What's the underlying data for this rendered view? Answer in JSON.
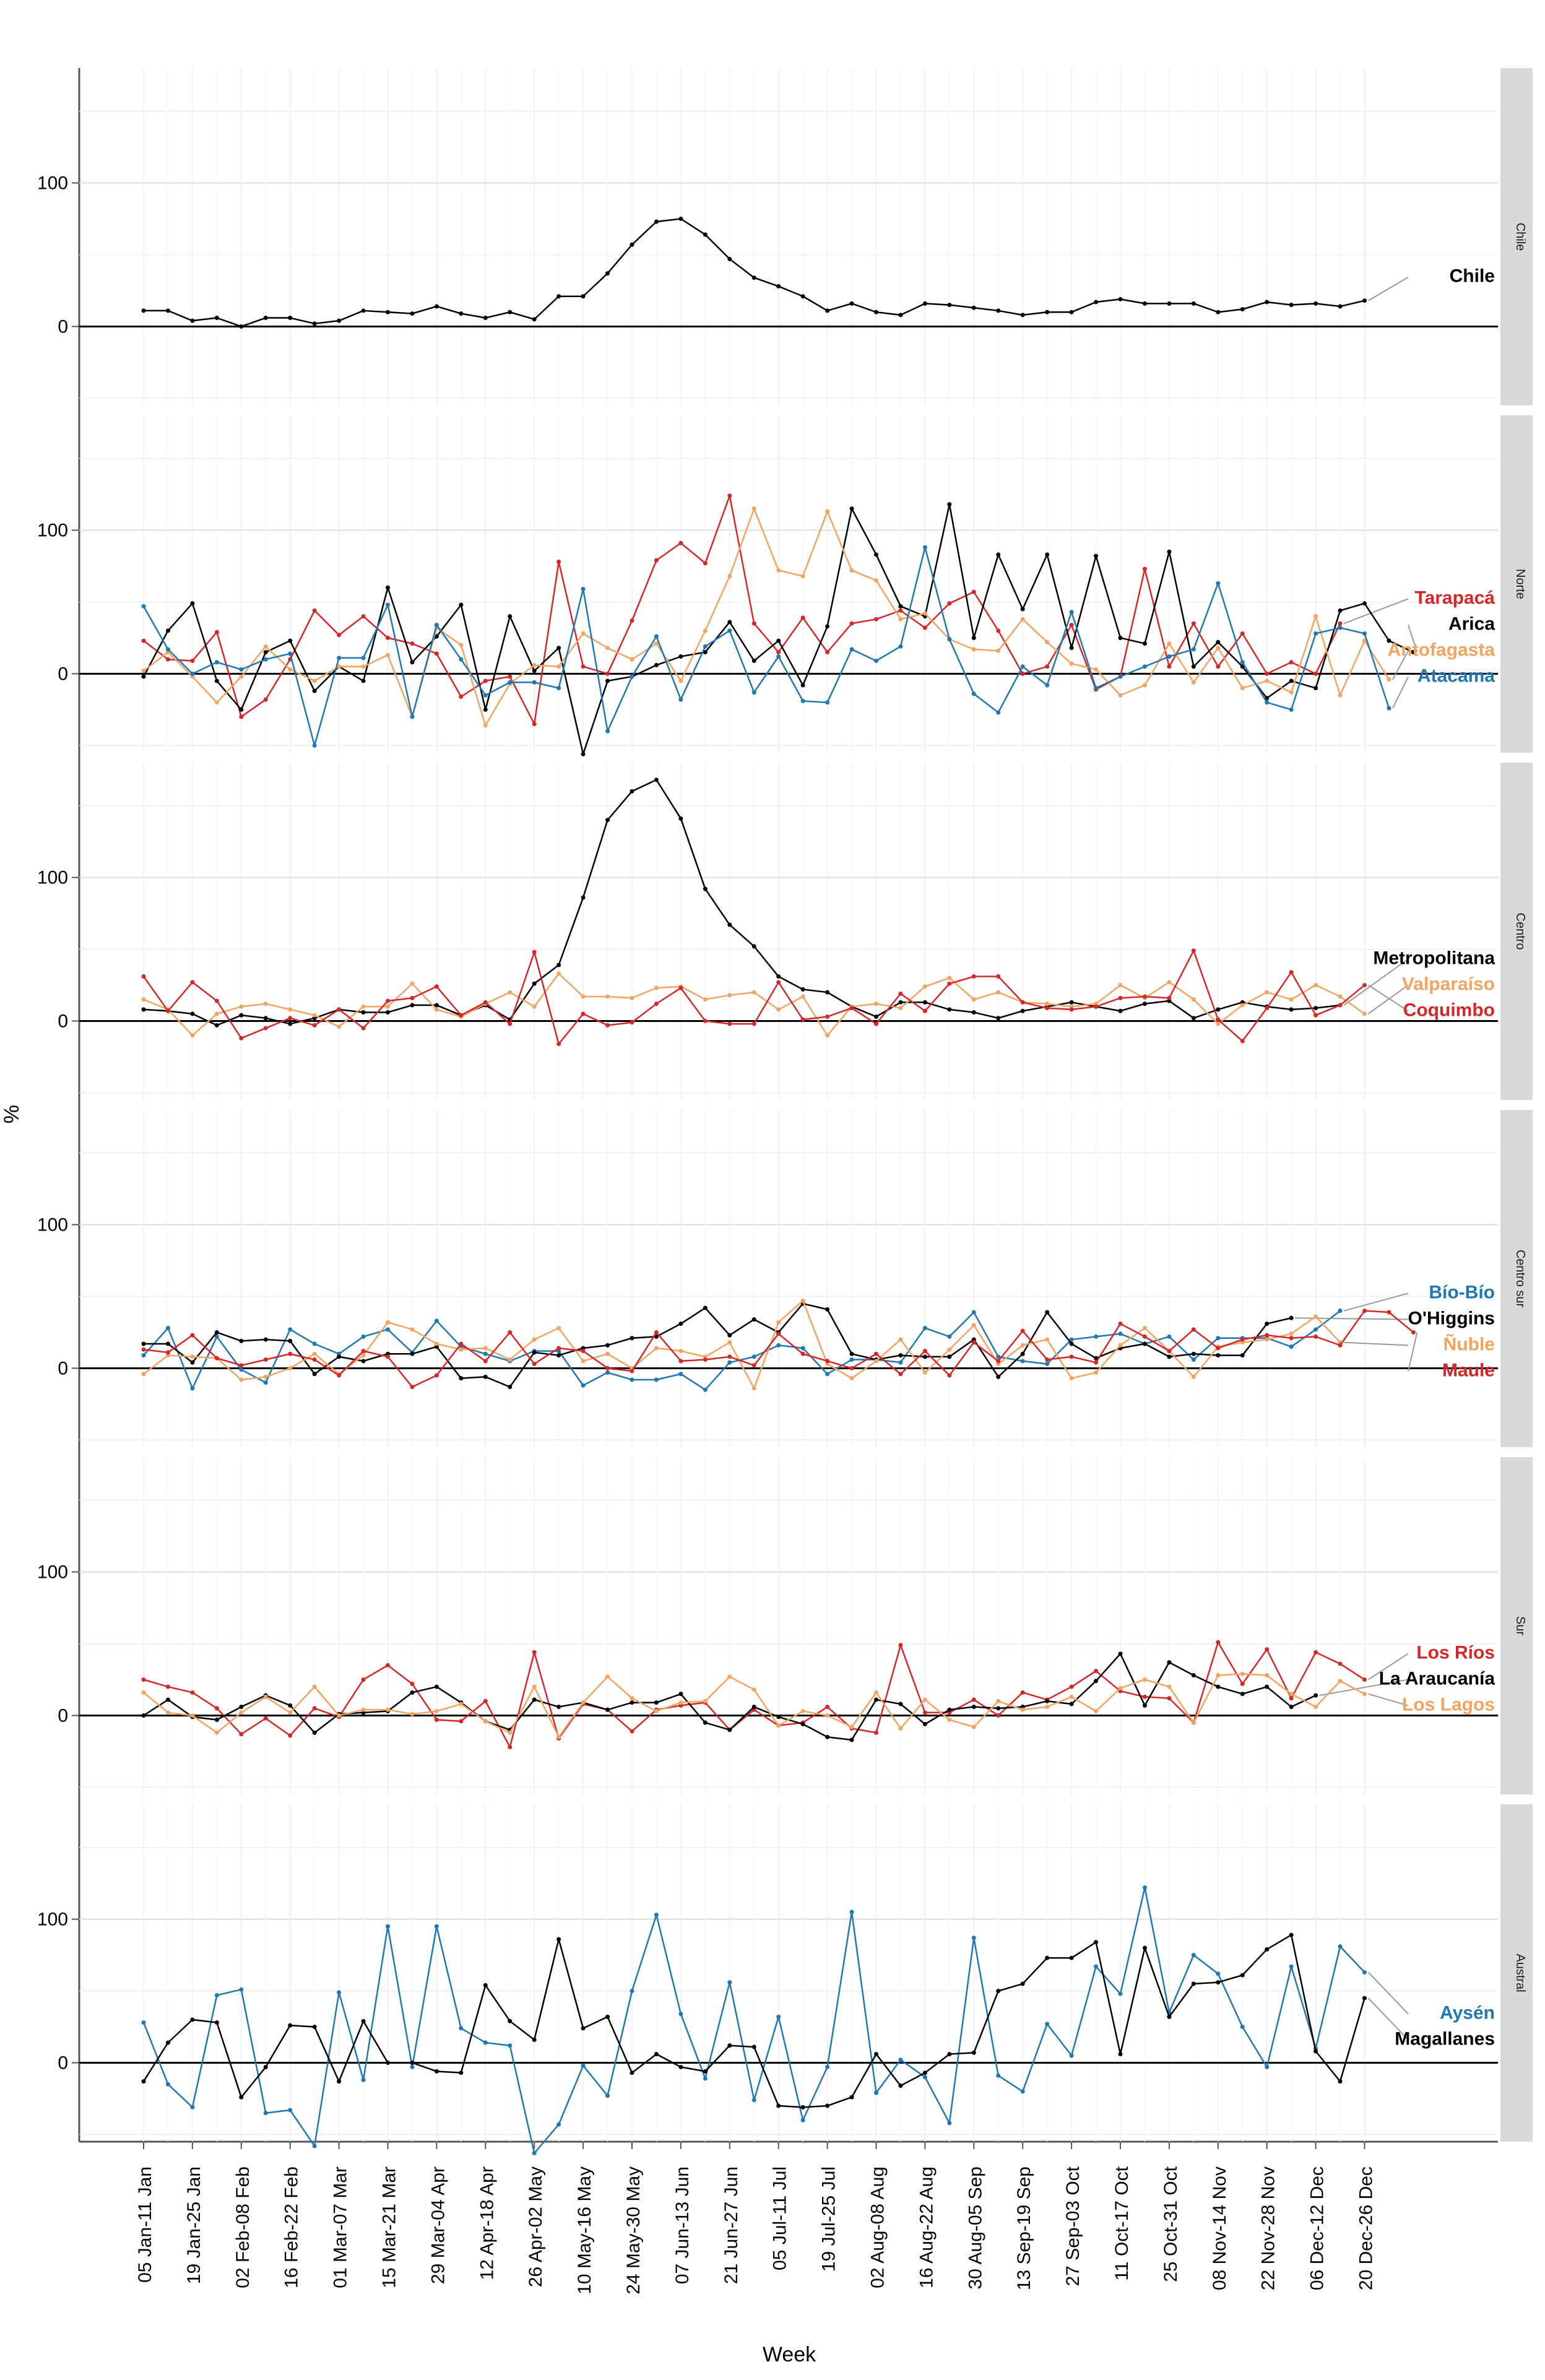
{
  "chart_data": {
    "type": "line",
    "ylabel": "%",
    "xlabel": "Week",
    "ylim": [
      -55,
      180
    ],
    "yticks": [
      0,
      100
    ],
    "tick_labels": [
      "05 Jan-11 Jan",
      "19 Jan-25 Jan",
      "02 Feb-08 Feb",
      "16 Feb-22 Feb",
      "01 Mar-07 Mar",
      "15 Mar-21 Mar",
      "29 Mar-04 Apr",
      "12 Apr-18 Apr",
      "26 Apr-02 May",
      "10 May-16 May",
      "24 May-30 May",
      "07 Jun-13 Jun",
      "21 Jun-27 Jun",
      "05 Jul-11 Jul",
      "19 Jul-25 Jul",
      "02 Aug-08 Aug",
      "16 Aug-22 Aug",
      "30 Aug-05 Sep",
      "13 Sep-19 Sep",
      "27 Sep-03 Oct",
      "11 Oct-17 Oct",
      "25 Oct-31 Oct",
      "08 Nov-14 Nov",
      "22 Nov-28 Nov",
      "06 Dec-12 Dec",
      "20 Dec-26 Dec"
    ],
    "panels": [
      {
        "name": "Chile",
        "series": [
          {
            "name": "Chile",
            "color": "#000000",
            "values": [
              11,
              11,
              4,
              6,
              0,
              6,
              6,
              2,
              4,
              11,
              10,
              9,
              14,
              9,
              6,
              10,
              5,
              21,
              21,
              37,
              57,
              73,
              75,
              64,
              47,
              34,
              28,
              21,
              11,
              16,
              10,
              8,
              16,
              15,
              13,
              11,
              8,
              10,
              10,
              17,
              19,
              16,
              16,
              16,
              10,
              12,
              17,
              15,
              16,
              14,
              18
            ]
          }
        ]
      },
      {
        "name": "Norte",
        "series": [
          {
            "name": "Tarapacá",
            "color": "#d62728",
            "values": [
              23,
              10,
              9,
              29,
              -30,
              -18,
              10,
              44,
              27,
              40,
              25,
              21,
              14,
              -16,
              -5,
              -2,
              -35,
              78,
              5,
              0,
              37,
              79,
              91,
              77,
              124,
              35,
              15,
              39,
              15,
              35,
              38,
              44,
              32,
              49,
              57,
              30,
              0,
              5,
              34,
              -11,
              -2,
              73,
              5,
              35,
              5,
              28,
              0,
              8,
              0,
              35
            ]
          },
          {
            "name": "Arica",
            "color": "#000000",
            "values": [
              -2,
              30,
              49,
              -5,
              -25,
              15,
              23,
              -12,
              5,
              -5,
              60,
              8,
              26,
              48,
              -25,
              40,
              2,
              18,
              -56,
              -5,
              -2,
              6,
              12,
              15,
              36,
              9,
              23,
              -8,
              33,
              115,
              83,
              47,
              40,
              118,
              25,
              83,
              45,
              83,
              18,
              82,
              25,
              21,
              85,
              5,
              22,
              5,
              -17,
              -5,
              -10,
              44,
              49,
              23,
              15
            ]
          },
          {
            "name": "Antofagasta",
            "color": "#f4a460",
            "values": [
              2,
              15,
              -2,
              -20,
              -2,
              19,
              3,
              -5,
              5,
              5,
              13,
              -30,
              32,
              20,
              -36,
              -7,
              6,
              5,
              28,
              18,
              10,
              21,
              -5,
              30,
              68,
              115,
              72,
              68,
              113,
              72,
              65,
              38,
              42,
              24,
              17,
              16,
              38,
              22,
              7,
              3,
              -15,
              -8,
              21,
              -6,
              18,
              -10,
              -5,
              -13,
              40,
              -15,
              23,
              -4
            ]
          },
          {
            "name": "Atacama",
            "color": "#1f77b4",
            "values": [
              47,
              17,
              0,
              8,
              3,
              10,
              14,
              -50,
              11,
              11,
              48,
              -30,
              34,
              10,
              -15,
              -6,
              -6,
              -10,
              59,
              -40,
              -2,
              26,
              -18,
              19,
              30,
              -13,
              12,
              -19,
              -20,
              17,
              9,
              19,
              88,
              24,
              -14,
              -27,
              5,
              -8,
              43,
              -10,
              -2,
              5,
              12,
              17,
              63,
              8,
              -20,
              -25,
              28,
              32,
              28,
              -24
            ]
          }
        ]
      },
      {
        "name": "Centro",
        "series": [
          {
            "name": "Metropolitana",
            "color": "#000000",
            "values": [
              8,
              7,
              5,
              -3,
              4,
              2,
              -2,
              2,
              8,
              6,
              6,
              11,
              11,
              4,
              11,
              1,
              26,
              39,
              86,
              140,
              160,
              168,
              141,
              92,
              67,
              52,
              31,
              22,
              20,
              10,
              3,
              13,
              13,
              8,
              6,
              2,
              7,
              10,
              13,
              10,
              7,
              12,
              14,
              2,
              8,
              13,
              10,
              8,
              9,
              11
            ]
          },
          {
            "name": "Valparaíso",
            "color": "#f4a460",
            "values": [
              15,
              8,
              -10,
              5,
              10,
              12,
              8,
              4,
              -4,
              10,
              10,
              26,
              8,
              3,
              12,
              20,
              10,
              33,
              17,
              17,
              16,
              23,
              24,
              15,
              18,
              20,
              8,
              17,
              -10,
              10,
              12,
              9,
              24,
              30,
              15,
              20,
              13,
              12,
              10,
              12,
              25,
              16,
              27,
              15,
              -2,
              11,
              20,
              15,
              25,
              17,
              5
            ]
          },
          {
            "name": "Coquimbo",
            "color": "#d62728",
            "values": [
              31,
              7,
              27,
              14,
              -12,
              -5,
              2,
              -3,
              8,
              -5,
              14,
              16,
              24,
              4,
              13,
              -2,
              48,
              -16,
              5,
              -3,
              -1,
              12,
              23,
              0,
              -2,
              -2,
              27,
              1,
              3,
              9,
              -2,
              19,
              7,
              26,
              31,
              31,
              13,
              9,
              8,
              10,
              16,
              17,
              16,
              49,
              1,
              -14,
              9,
              34,
              4,
              11,
              25
            ]
          }
        ]
      },
      {
        "name": "Centro sur",
        "series": [
          {
            "name": "Bío-Bío",
            "color": "#1f77b4",
            "values": [
              9,
              28,
              -14,
              22,
              -1,
              -10,
              27,
              17,
              10,
              22,
              27,
              11,
              33,
              15,
              10,
              5,
              12,
              12,
              -12,
              -3,
              -8,
              -8,
              -4,
              -15,
              4,
              8,
              16,
              14,
              -4,
              6,
              6,
              4,
              28,
              22,
              39,
              8,
              5,
              3,
              20,
              22,
              24,
              17,
              22,
              6,
              21,
              21,
              21,
              15,
              27,
              40
            ]
          },
          {
            "name": "O'Higgins",
            "color": "#000000",
            "values": [
              17,
              17,
              4,
              25,
              19,
              20,
              19,
              -4,
              8,
              5,
              10,
              10,
              15,
              -7,
              -6,
              -13,
              11,
              9,
              14,
              16,
              21,
              22,
              31,
              42,
              23,
              34,
              25,
              45,
              41,
              10,
              6,
              9,
              8,
              8,
              20,
              -6,
              10,
              39,
              17,
              7,
              14,
              17,
              8,
              10,
              9,
              9,
              31,
              35
            ]
          },
          {
            "name": "Ñuble",
            "color": "#f4a460",
            "values": [
              -4,
              9,
              8,
              7,
              -8,
              -6,
              0,
              10,
              -4,
              9,
              32,
              27,
              17,
              13,
              14,
              6,
              20,
              28,
              5,
              10,
              0,
              14,
              12,
              8,
              18,
              -14,
              32,
              47,
              3,
              -7,
              5,
              20,
              -3,
              13,
              30,
              3,
              16,
              20,
              -7,
              -3,
              16,
              28,
              12,
              -6,
              15,
              18,
              20,
              24,
              36,
              18
            ]
          },
          {
            "name": "Maule",
            "color": "#d62728",
            "values": [
              13,
              11,
              23,
              7,
              2,
              6,
              10,
              6,
              -5,
              12,
              8,
              -13,
              -5,
              17,
              5,
              25,
              3,
              14,
              12,
              0,
              -2,
              25,
              5,
              6,
              8,
              2,
              24,
              10,
              5,
              0,
              10,
              -4,
              12,
              -5,
              18,
              5,
              26,
              6,
              8,
              4,
              31,
              22,
              12,
              27,
              14,
              20,
              23,
              21,
              22,
              16,
              40,
              39,
              25
            ]
          }
        ]
      },
      {
        "name": "Sur",
        "series": [
          {
            "name": "Los Ríos",
            "color": "#d62728",
            "values": [
              25,
              20,
              16,
              5,
              -13,
              -2,
              -14,
              5,
              -1,
              25,
              35,
              22,
              -3,
              -4,
              10,
              -22,
              44,
              -16,
              8,
              4,
              -11,
              4,
              7,
              9,
              -10,
              4,
              -7,
              -5,
              6,
              -9,
              -12,
              49,
              2,
              2,
              11,
              0,
              16,
              11,
              20,
              31,
              17,
              13,
              12,
              -5,
              51,
              22,
              46,
              12,
              44,
              36,
              25
            ]
          },
          {
            "name": "La Araucanía",
            "color": "#000000",
            "values": [
              0,
              11,
              -1,
              -3,
              6,
              14,
              7,
              -12,
              1,
              2,
              3,
              16,
              20,
              9,
              -4,
              -10,
              11,
              6,
              9,
              4,
              9,
              9,
              15,
              -5,
              -10,
              6,
              -1,
              -6,
              -15,
              -17,
              11,
              8,
              -6,
              4,
              6,
              5,
              6,
              10,
              8,
              24,
              43,
              7,
              37,
              28,
              20,
              15,
              20,
              6,
              14
            ]
          },
          {
            "name": "Los Lagos",
            "color": "#f4a460",
            "values": [
              16,
              2,
              0,
              -12,
              2,
              13,
              2,
              20,
              0,
              4,
              4,
              1,
              3,
              8,
              -4,
              -12,
              20,
              -15,
              9,
              27,
              12,
              3,
              9,
              10,
              27,
              18,
              -7,
              3,
              0,
              -8,
              16,
              -9,
              11,
              -3,
              -8,
              10,
              4,
              6,
              13,
              3,
              19,
              25,
              20,
              -5,
              28,
              29,
              28,
              15,
              6,
              24,
              15
            ]
          }
        ]
      },
      {
        "name": "Austral",
        "series": [
          {
            "name": "Aysén",
            "color": "#1f77b4",
            "values": [
              28,
              -15,
              -31,
              47,
              51,
              -35,
              -33,
              -58,
              49,
              -12,
              95,
              -3,
              95,
              24,
              14,
              12,
              -63,
              -43,
              -2,
              -23,
              50,
              103,
              34,
              -11,
              56,
              -26,
              32,
              -40,
              -3,
              105,
              -21,
              2,
              -10,
              -42,
              87,
              -9,
              -20,
              27,
              5,
              67,
              48,
              122,
              35,
              75,
              62,
              25,
              -3,
              67,
              10,
              81,
              63
            ]
          },
          {
            "name": "Magallanes",
            "color": "#000000",
            "values": [
              -13,
              14,
              30,
              28,
              -24,
              -3,
              26,
              25,
              -13,
              29,
              0,
              0,
              -6,
              -7,
              54,
              29,
              16,
              86,
              24,
              32,
              -7,
              6,
              -3,
              -6,
              12,
              11,
              -30,
              -31,
              -30,
              -24,
              6,
              -16,
              -7,
              6,
              7,
              50,
              55,
              73,
              73,
              84,
              6,
              80,
              32,
              55,
              56,
              61,
              79,
              89,
              8,
              -13,
              45
            ]
          }
        ]
      }
    ]
  }
}
